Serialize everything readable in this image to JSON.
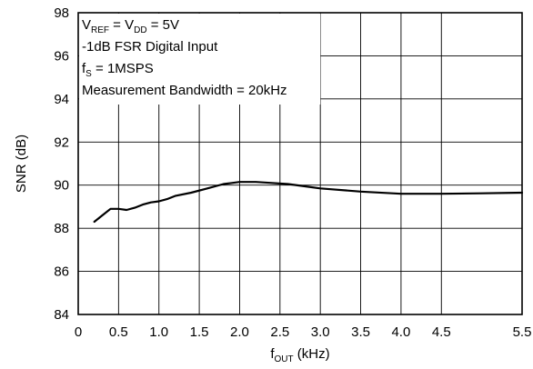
{
  "chart_data": {
    "type": "line",
    "xlabel": {
      "main": "f",
      "sub": "OUT",
      "unit": " (kHz)"
    },
    "ylabel": "SNR (dB)",
    "xlim": [
      0,
      5.5
    ],
    "ylim": [
      84,
      98
    ],
    "xticks": [
      "0",
      "0.5",
      "1.0",
      "1.5",
      "2.0",
      "2.5",
      "3.0",
      "3.5",
      "4.0",
      "4.5",
      "5.5"
    ],
    "xtick_values": [
      0,
      0.5,
      1.0,
      1.5,
      2.0,
      2.5,
      3.0,
      3.5,
      4.0,
      4.5,
      5.5
    ],
    "yticks": [
      "84",
      "86",
      "88",
      "90",
      "92",
      "94",
      "96",
      "98"
    ],
    "ytick_values": [
      84,
      86,
      88,
      90,
      92,
      94,
      96,
      98
    ],
    "grid": true,
    "series": [
      {
        "x": [
          0.2,
          0.3,
          0.4,
          0.5,
          0.6,
          0.7,
          0.8,
          0.9,
          1.0,
          1.1,
          1.2,
          1.4,
          1.6,
          1.8,
          2.0,
          2.2,
          2.4,
          2.6,
          2.8,
          3.0,
          3.5,
          4.0,
          4.5,
          5.0,
          5.5
        ],
        "y": [
          88.3,
          88.6,
          88.9,
          88.9,
          88.85,
          88.95,
          89.1,
          89.2,
          89.25,
          89.35,
          89.5,
          89.65,
          89.85,
          90.05,
          90.15,
          90.15,
          90.1,
          90.05,
          89.95,
          89.85,
          89.7,
          89.6,
          89.6,
          89.62,
          89.65
        ],
        "color": "#000000"
      }
    ],
    "annotations": [
      {
        "parts": [
          {
            "t": "V"
          },
          {
            "t": "REF",
            "sub": true
          },
          {
            "t": " = V"
          },
          {
            "t": "DD",
            "sub": true
          },
          {
            "t": " = 5V"
          }
        ]
      },
      {
        "parts": [
          {
            "t": "-1dB FSR Digital Input"
          }
        ]
      },
      {
        "parts": [
          {
            "t": "f"
          },
          {
            "t": "S",
            "sub": true
          },
          {
            "t": " = 1MSPS"
          }
        ]
      },
      {
        "parts": [
          {
            "t": "Measurement Bandwidth = 20kHz"
          }
        ]
      }
    ]
  }
}
